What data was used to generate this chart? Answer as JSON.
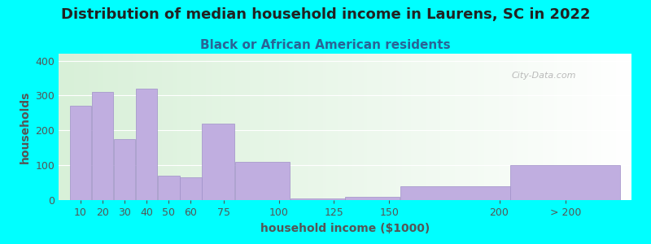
{
  "title": "Distribution of median household income in Laurens, SC in 2022",
  "subtitle": "Black or African American residents",
  "xlabel": "household income ($1000)",
  "ylabel": "households",
  "background_outer": "#00FFFF",
  "background_inner_left": "#d8f0d8",
  "background_inner_right": "#ffffff",
  "bar_color": "#c0aee0",
  "bar_edge_color": "#a090c8",
  "values": [
    270,
    310,
    175,
    320,
    70,
    65,
    220,
    110,
    5,
    10,
    40,
    100
  ],
  "bar_widths": [
    10,
    10,
    10,
    10,
    10,
    10,
    15,
    25,
    25,
    25,
    50,
    50
  ],
  "bar_lefts": [
    5,
    15,
    25,
    35,
    45,
    55,
    65,
    80,
    105,
    130,
    155,
    205
  ],
  "xlim": [
    0,
    260
  ],
  "ylim": [
    0,
    420
  ],
  "yticks": [
    0,
    100,
    200,
    300,
    400
  ],
  "xtick_positions": [
    10,
    20,
    30,
    40,
    50,
    60,
    75,
    100,
    125,
    150,
    200,
    230
  ],
  "xtick_labels": [
    "10",
    "20",
    "30",
    "40",
    "50",
    "60",
    "75",
    "100",
    "125",
    "150",
    "200",
    "> 200"
  ],
  "title_fontsize": 13,
  "subtitle_fontsize": 11,
  "axis_label_fontsize": 10,
  "tick_fontsize": 9,
  "title_color": "#222222",
  "subtitle_color": "#2a6496",
  "axis_label_color": "#555555",
  "tick_color": "#555555",
  "watermark": "City-Data.com"
}
